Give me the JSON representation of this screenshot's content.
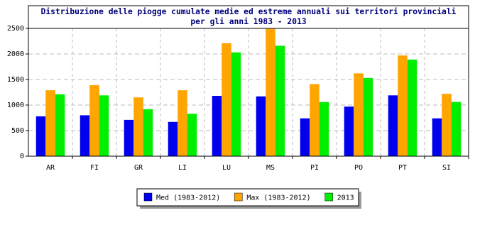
{
  "chart_data": {
    "type": "bar",
    "title": "Distribuzione delle piogge cumulate medie ed estreme annuali sui territori provinciali",
    "subtitle": "per gli anni 1983 - 2013",
    "categories": [
      "AR",
      "FI",
      "GR",
      "LI",
      "LU",
      "MS",
      "PI",
      "PO",
      "PT",
      "SI"
    ],
    "series": [
      {
        "name": "Med (1983-2012)",
        "color": "#0000ee",
        "values": [
          780,
          800,
          710,
          670,
          1180,
          1170,
          740,
          970,
          1190,
          740
        ]
      },
      {
        "name": "Max (1983-2012)",
        "color": "#ffa500",
        "values": [
          1290,
          1390,
          1150,
          1290,
          2210,
          2490,
          1410,
          1620,
          1970,
          1220
        ]
      },
      {
        "name": "2013",
        "color": "#00ee00",
        "values": [
          1210,
          1190,
          920,
          830,
          2030,
          2160,
          1060,
          1530,
          1890,
          1060
        ]
      }
    ],
    "ylim": [
      0,
      2500
    ],
    "yticks": [
      0,
      500,
      1000,
      1500,
      2000,
      2500
    ],
    "grid": true
  }
}
